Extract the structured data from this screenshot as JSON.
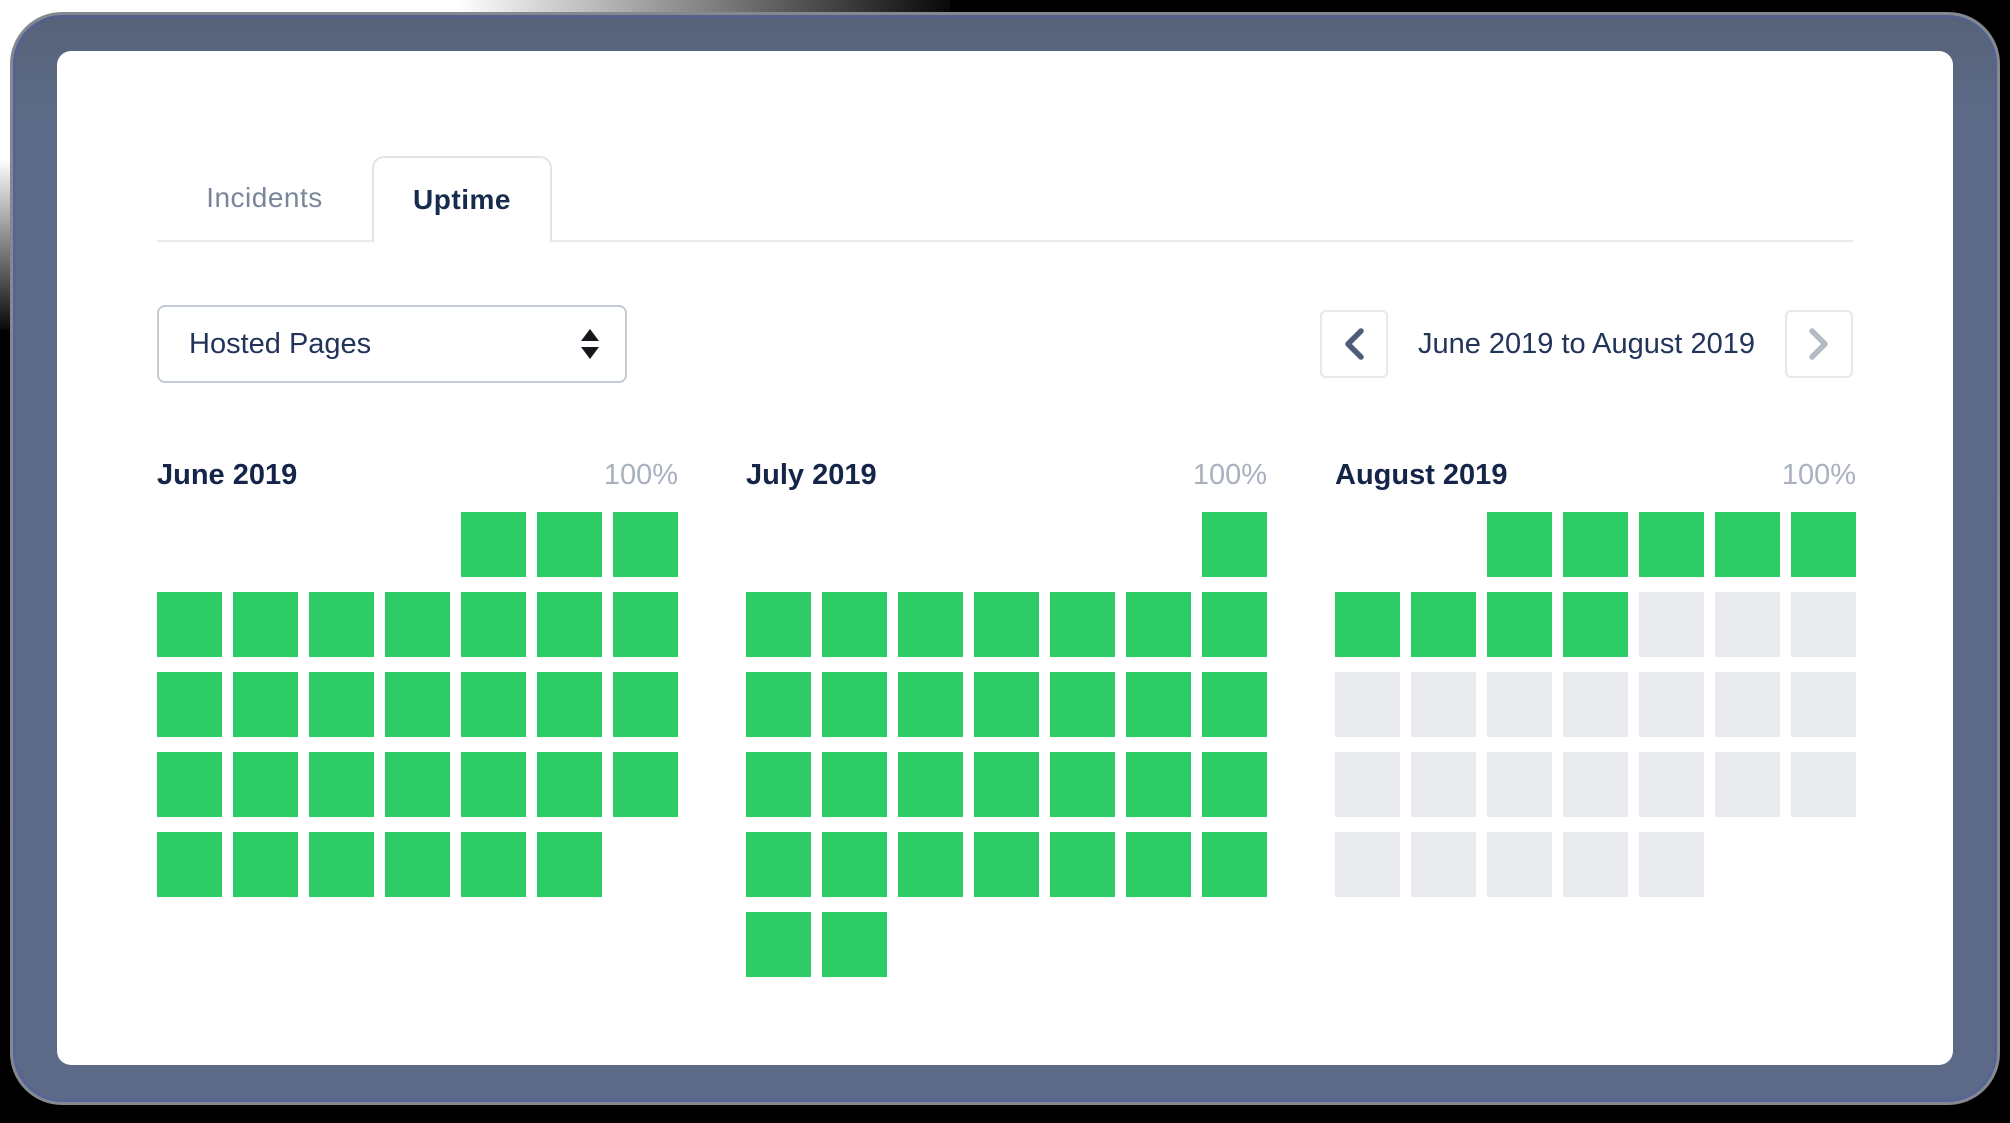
{
  "tabs": [
    {
      "id": "incidents",
      "label": "Incidents",
      "active": false
    },
    {
      "id": "uptime",
      "label": "Uptime",
      "active": true
    }
  ],
  "selector": {
    "value": "Hosted Pages"
  },
  "date_nav": {
    "label": "June 2019 to August 2019",
    "prev_enabled": true,
    "next_enabled": false
  },
  "cell_legend": {
    "U": "day operational (green)",
    "E": "day with no data yet (gray)",
    "-": "no day rendered"
  },
  "months": [
    {
      "name": "June 2019",
      "uptime": "100%",
      "rows": [
        "----UUU",
        "UUUUUUU",
        "UUUUUUU",
        "UUUUUUU",
        "UUUUUU-"
      ]
    },
    {
      "name": "July 2019",
      "uptime": "100%",
      "rows": [
        "------U",
        "UUUUUUU",
        "UUUUUUU",
        "UUUUUUU",
        "UUUUUUU",
        "UU-----"
      ]
    },
    {
      "name": "August 2019",
      "uptime": "100%",
      "rows": [
        "--UUUUU",
        "UUUUEEE",
        "EEEEEEE",
        "EEEEEEE",
        "EEEEE--"
      ]
    }
  ],
  "colors": {
    "operational": "#2ecc66",
    "future": "#e9ebee",
    "frame": "#5c6a87",
    "navy_text": "#172b4d",
    "inactive_tab": "#7a869a",
    "percent_label": "#a9b1bf"
  }
}
